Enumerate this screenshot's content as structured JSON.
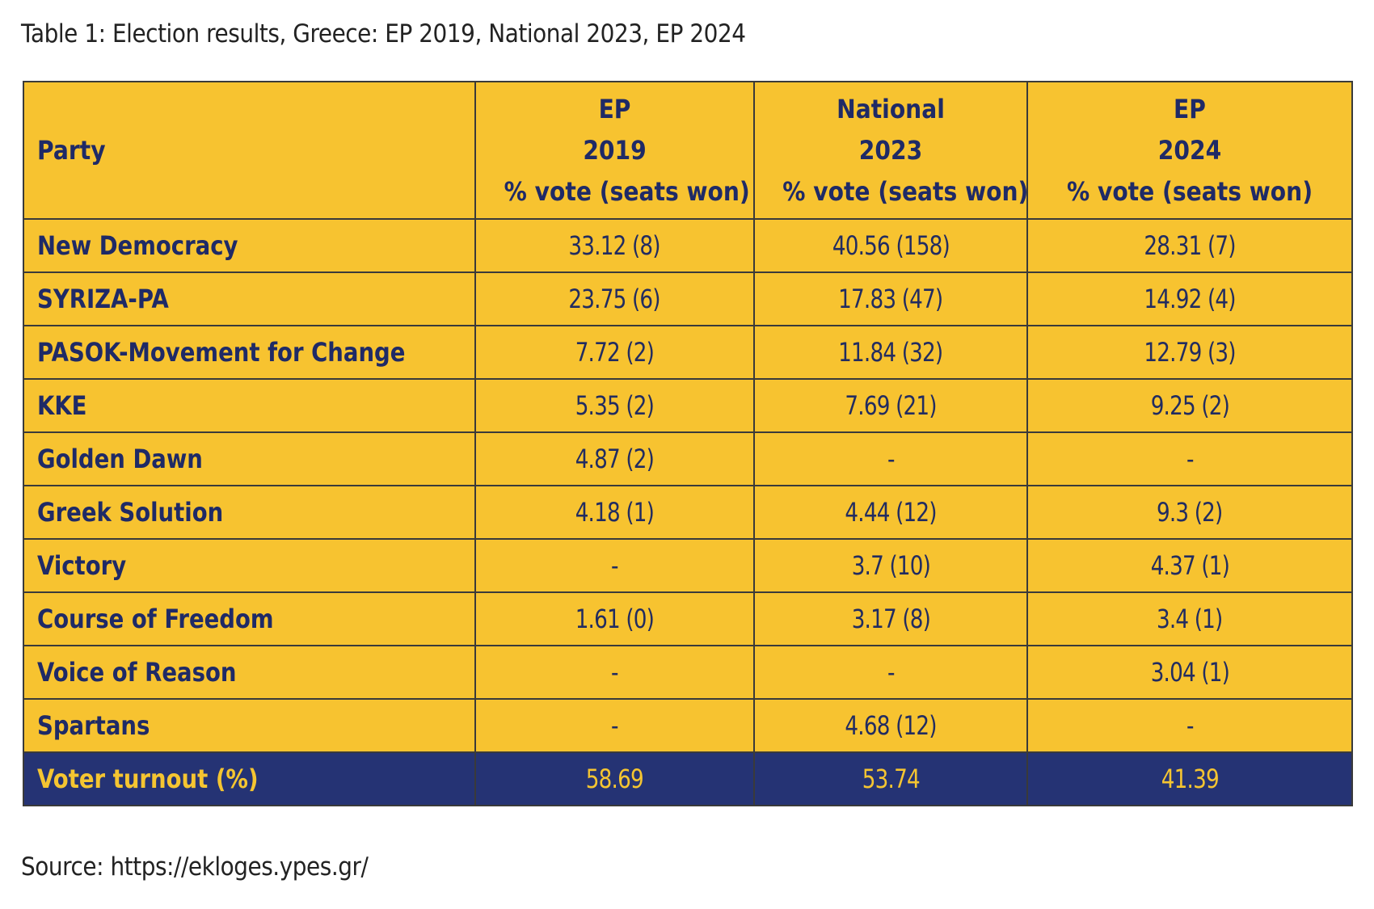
{
  "caption": "Table 1: Election results, Greece: EP 2019, National 2023, EP 2024",
  "table": {
    "headers": {
      "party": "Party",
      "columns": [
        {
          "line1": "EP",
          "line2": "2019",
          "line3": "% vote (seats won)"
        },
        {
          "line1": "National",
          "line2": "2023",
          "line3": "% vote (seats won)"
        },
        {
          "line1": "EP",
          "line2": "2024",
          "line3": "% vote (seats won)"
        }
      ]
    },
    "rows": [
      {
        "party": "New Democracy",
        "values": [
          "33.12 (8)",
          "40.56 (158)",
          "28.31 (7)"
        ]
      },
      {
        "party": "SYRIZA-PA",
        "values": [
          "23.75 (6)",
          "17.83 (47)",
          "14.92 (4)"
        ]
      },
      {
        "party": "PASOK-Movement for Change",
        "values": [
          "7.72 (2)",
          "11.84 (32)",
          "12.79 (3)"
        ]
      },
      {
        "party": "KKE",
        "values": [
          "5.35 (2)",
          "7.69 (21)",
          "9.25 (2)"
        ]
      },
      {
        "party": "Golden Dawn",
        "values": [
          "4.87 (2)",
          "-",
          "-"
        ]
      },
      {
        "party": "Greek Solution",
        "values": [
          "4.18 (1)",
          "4.44 (12)",
          "9.3 (2)"
        ]
      },
      {
        "party": "Victory",
        "values": [
          "-",
          "3.7 (10)",
          "4.37 (1)"
        ]
      },
      {
        "party": "Course of Freedom",
        "values": [
          "1.61 (0)",
          "3.17 (8)",
          "3.4 (1)"
        ]
      },
      {
        "party": "Voice of Reason",
        "values": [
          "-",
          "-",
          "3.04 (1)"
        ]
      },
      {
        "party": "Spartans",
        "values": [
          "-",
          "4.68 (12)",
          "-"
        ]
      }
    ],
    "turnout": {
      "label": "Voter turnout (%)",
      "values": [
        "58.69",
        "53.74",
        "41.39"
      ]
    }
  },
  "source": "Source: https://ekloges.ypes.gr/",
  "colors": {
    "cell_fill": "#f7c330",
    "turnout_fill": "#253374",
    "text_navy": "#1f2a66",
    "turnout_text": "#f5c531"
  }
}
